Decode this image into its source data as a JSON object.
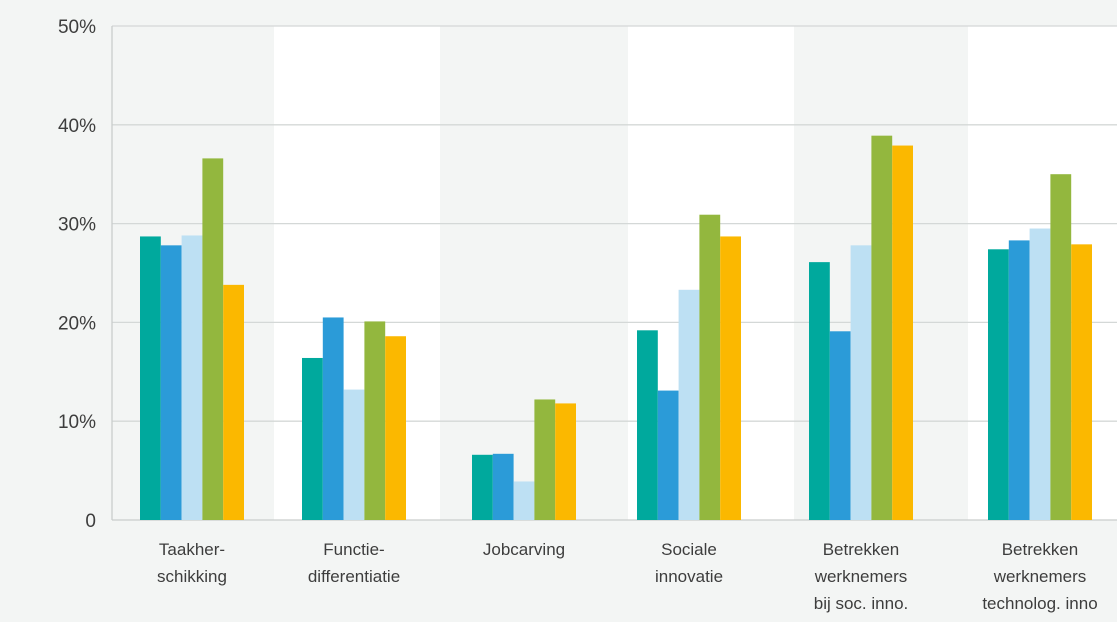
{
  "chart_data": {
    "type": "bar",
    "categories": [
      [
        "Taakher-",
        "schikking"
      ],
      [
        "Functie-",
        "differentiatie"
      ],
      [
        "Jobcarving"
      ],
      [
        "Sociale",
        "innovatie"
      ],
      [
        "Betrekken",
        "werknemers",
        "bij soc. inno."
      ],
      [
        "Betrekken",
        "werknemers",
        "technolog. inno"
      ]
    ],
    "series": [
      {
        "color": "#00a99d",
        "values": [
          28.7,
          16.4,
          6.6,
          19.2,
          26.1,
          27.4
        ]
      },
      {
        "color": "#2b9bd8",
        "values": [
          27.8,
          20.5,
          6.7,
          13.1,
          19.1,
          28.3
        ]
      },
      {
        "color": "#bde0f3",
        "values": [
          28.8,
          13.2,
          3.9,
          23.3,
          27.8,
          29.5
        ]
      },
      {
        "color": "#93b73e",
        "values": [
          36.6,
          20.1,
          12.2,
          30.9,
          38.9,
          35.0
        ]
      },
      {
        "color": "#fbb800",
        "values": [
          23.8,
          18.6,
          11.8,
          28.7,
          37.9,
          27.9
        ]
      }
    ],
    "yticks": [
      "0",
      "10%",
      "20%",
      "30%",
      "40%",
      "50%"
    ],
    "ylim": [
      0,
      50
    ],
    "grid": true,
    "band_color": "#ffffff",
    "gridline_color": "#d4d8d7"
  }
}
